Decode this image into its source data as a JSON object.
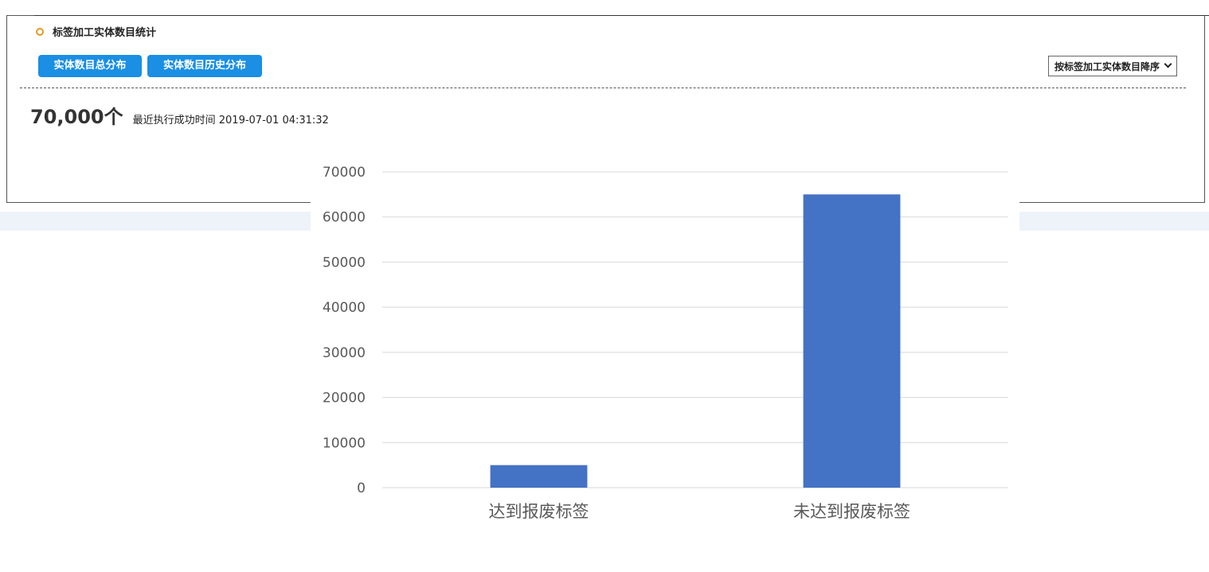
{
  "section": {
    "title": "标签加工实体数目统计"
  },
  "tabs": {
    "total_label": "实体数目总分布",
    "history_label": "实体数目历史分布"
  },
  "sort": {
    "selected": "按标签加工实体数目降序"
  },
  "summary": {
    "total": "70,000个",
    "last_run": "最近执行成功时间 2019-07-01 04:31:32"
  },
  "colors": {
    "accent": "#1a8fe3",
    "title_ring": "#e59b22",
    "bar": "#4472c4"
  },
  "chart_data": {
    "type": "bar",
    "categories": [
      "达到报废标签",
      "未达到报废标签"
    ],
    "values": [
      5000,
      65000
    ],
    "ylim": [
      0,
      70000
    ],
    "yticks": [
      0,
      10000,
      20000,
      30000,
      40000,
      50000,
      60000,
      70000
    ],
    "grid": true,
    "title": "",
    "xlabel": "",
    "ylabel": ""
  }
}
